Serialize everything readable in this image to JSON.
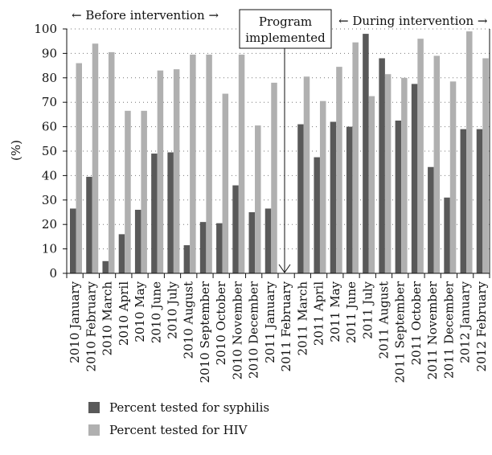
{
  "chart_data": {
    "type": "bar",
    "title": "",
    "xlabel": "",
    "ylabel": "(%)",
    "ylim": [
      0,
      100
    ],
    "yticks": [
      0,
      10,
      20,
      30,
      40,
      50,
      60,
      70,
      80,
      90,
      100
    ],
    "grid": "dotted horizontal",
    "categories": [
      "2010 January",
      "2010 February",
      "2010 March",
      "2010 April",
      "2010 May",
      "2010 June",
      "2010 July",
      "2010 August",
      "2010 September",
      "2010 October",
      "2010 November",
      "2010 December",
      "2011 January",
      "2011 February",
      "2011 March",
      "2011 April",
      "2011 May",
      "2011 June",
      "2011 July",
      "2011 August",
      "2011 September",
      "2011 October",
      "2011 November",
      "2011 December",
      "2012 January",
      "2012 February"
    ],
    "series": [
      {
        "name": "Percent tested for syphilis",
        "color": "#595959",
        "values": [
          26.5,
          39.5,
          5,
          16,
          26,
          49,
          49.5,
          11.5,
          21,
          20.5,
          36,
          25,
          26.5,
          null,
          61,
          47.5,
          62,
          60,
          98,
          88,
          62.5,
          77.5,
          43.5,
          31,
          59,
          59
        ]
      },
      {
        "name": "Percent tested for HIV",
        "color": "#b0b0b0",
        "values": [
          86,
          94,
          90.5,
          66.5,
          66.5,
          83,
          83.5,
          89.5,
          89.5,
          73.5,
          89.5,
          60.5,
          78,
          null,
          80.5,
          70.5,
          84.5,
          94.5,
          72.5,
          81.5,
          80,
          96,
          89,
          78.5,
          99,
          88
        ]
      }
    ],
    "annotations": {
      "before": "Before intervention",
      "during": "During intervention",
      "program_line1": "Program",
      "program_line2": "implemented"
    }
  }
}
